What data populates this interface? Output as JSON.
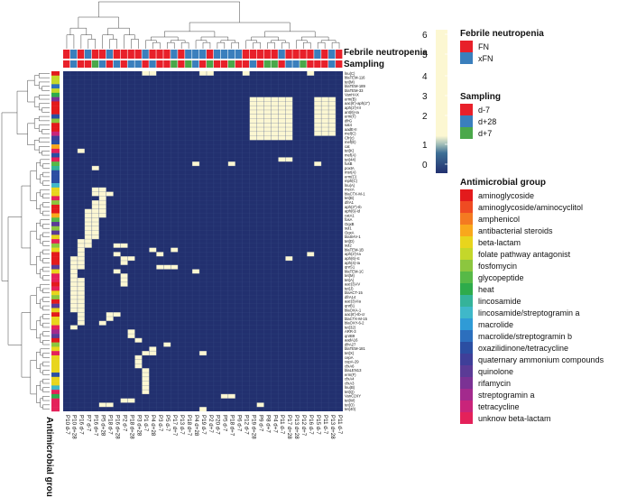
{
  "chart_data": {
    "type": "heatmap",
    "title": "",
    "xlabel": "",
    "ylabel": "Antimicrobial group",
    "value_range": [
      0,
      6
    ],
    "colorbar_ticks": [
      "6",
      "5",
      "4",
      "3",
      "2",
      "1",
      "0"
    ],
    "colorbar_ticks_numeric": [
      6,
      5,
      4,
      3,
      2,
      1,
      0
    ],
    "colorbar_colors": [
      "#fcf7d2",
      "#22306f"
    ],
    "column_labels": [
      "P10 d-7",
      "P10 d+28",
      "P16 d-7",
      "P7 d-7",
      "P16 d+7",
      "P5 d+28",
      "P18 d-7",
      "P16 d+28",
      "P2 d-7",
      "P18 d+28",
      "P3 d+28",
      "P1 d-7",
      "P4 d+28",
      "P3 d-7",
      "P5 d-7",
      "P17 d+7",
      "P13 d-7",
      "P18 d+7",
      "P4 d+28",
      "P19 d-7",
      "P2 d+7",
      "P20 d-7",
      "P5 d-7",
      "P18 d+7",
      "P6 d-7",
      "P12 d-7",
      "P19 d+28",
      "P9 d-7",
      "P8 d+7",
      "P4 d+7",
      "P11 d-7",
      "P17 d+28",
      "P13 d+28",
      "P12 d+7",
      "P16 d-7",
      "P15 d-7",
      "P11 d-7",
      "P13 d+28",
      "P11 d-7"
    ],
    "row_labels": [
      "lnu(C)",
      "blaTEM-116",
      "tet(M)",
      "blaTEM-189",
      "blaTEM-33",
      "VanHAX",
      "erm(B)",
      "aac(6')-aph(2'')",
      "aph(3')-III",
      "ant(6)-Ia",
      "erm(F)",
      "dfrG",
      "sat4",
      "aadE-II",
      "mel(C)",
      "Cfr(c)",
      "mef(E)",
      "cat",
      "tet(K)",
      "mef(A)",
      "tet(44)",
      "fusB",
      "poxtA",
      "msr(A)",
      "erm(C)",
      "mph(C)",
      "lnu(A)",
      "mecA",
      "blaCTX-M-1",
      "tet(B)",
      "dfrA1",
      "aph(3'')-Ib",
      "aph(6)-Id",
      "catA1",
      "fosA",
      "OqxB",
      "sul1",
      "OqxA",
      "blaSHV-1",
      "tet(D)",
      "sul2",
      "blaTEM-1B",
      "aph(3')-Ia",
      "aph(6)-Ic",
      "aph(4)-Ia",
      "qnrS1",
      "blaTEM-1C",
      "tet(M)",
      "tet(A)",
      "aac(3)-IV",
      "tet(J)",
      "blaACT-15",
      "dfrA14",
      "aac(3)-IIa",
      "qnrB1",
      "blaOXA-1",
      "aac(6')-Ib-cr",
      "blaCTX-M-15",
      "blaOXY-6-2",
      "tet(32)",
      "ARR-3",
      "qnrB9",
      "aadA16",
      "dfrA27",
      "blaTEM-181",
      "tet(X)",
      "cepA",
      "cepA-29",
      "cfxA6",
      "blaLEN13",
      "erm(F)",
      "cfxA4",
      "cfxA3",
      "lnu(B)",
      "tet(Q)",
      "VanC2XY",
      "tet(W)",
      "tet(O)",
      "tet(40)"
    ],
    "matrix_high_cells": [
      [
        0,
        11
      ],
      [
        0,
        12
      ],
      [
        0,
        19
      ],
      [
        0,
        20
      ],
      [
        0,
        25
      ],
      [
        0,
        34
      ],
      [
        6,
        26
      ],
      [
        6,
        27
      ],
      [
        6,
        28
      ],
      [
        6,
        29
      ],
      [
        6,
        30
      ],
      [
        6,
        31
      ],
      [
        6,
        35
      ],
      [
        6,
        36
      ],
      [
        6,
        37
      ],
      [
        7,
        26
      ],
      [
        7,
        27
      ],
      [
        7,
        28
      ],
      [
        7,
        29
      ],
      [
        7,
        30
      ],
      [
        7,
        31
      ],
      [
        7,
        35
      ],
      [
        7,
        36
      ],
      [
        7,
        37
      ],
      [
        8,
        26
      ],
      [
        8,
        27
      ],
      [
        8,
        28
      ],
      [
        8,
        29
      ],
      [
        8,
        30
      ],
      [
        8,
        31
      ],
      [
        8,
        35
      ],
      [
        8,
        36
      ],
      [
        8,
        37
      ],
      [
        9,
        26
      ],
      [
        9,
        27
      ],
      [
        9,
        28
      ],
      [
        9,
        29
      ],
      [
        9,
        30
      ],
      [
        9,
        31
      ],
      [
        9,
        35
      ],
      [
        9,
        36
      ],
      [
        9,
        37
      ],
      [
        10,
        26
      ],
      [
        10,
        27
      ],
      [
        10,
        28
      ],
      [
        10,
        29
      ],
      [
        10,
        30
      ],
      [
        10,
        31
      ],
      [
        10,
        35
      ],
      [
        10,
        36
      ],
      [
        10,
        37
      ],
      [
        11,
        26
      ],
      [
        11,
        27
      ],
      [
        11,
        28
      ],
      [
        11,
        29
      ],
      [
        11,
        30
      ],
      [
        11,
        31
      ],
      [
        11,
        35
      ],
      [
        11,
        36
      ],
      [
        11,
        37
      ],
      [
        12,
        26
      ],
      [
        12,
        27
      ],
      [
        12,
        28
      ],
      [
        12,
        29
      ],
      [
        12,
        30
      ],
      [
        12,
        31
      ],
      [
        12,
        35
      ],
      [
        12,
        36
      ],
      [
        12,
        37
      ],
      [
        13,
        26
      ],
      [
        13,
        27
      ],
      [
        13,
        28
      ],
      [
        13,
        29
      ],
      [
        13,
        30
      ],
      [
        13,
        31
      ],
      [
        13,
        35
      ],
      [
        13,
        36
      ],
      [
        13,
        37
      ],
      [
        14,
        26
      ],
      [
        14,
        27
      ],
      [
        14,
        28
      ],
      [
        14,
        29
      ],
      [
        14,
        30
      ],
      [
        14,
        31
      ],
      [
        14,
        35
      ],
      [
        14,
        36
      ],
      [
        14,
        37
      ],
      [
        15,
        26
      ],
      [
        15,
        27
      ],
      [
        15,
        28
      ],
      [
        15,
        29
      ],
      [
        15,
        30
      ],
      [
        15,
        31
      ],
      [
        18,
        2
      ],
      [
        20,
        30
      ],
      [
        20,
        31
      ],
      [
        21,
        18
      ],
      [
        21,
        23
      ],
      [
        21,
        35
      ],
      [
        22,
        4
      ],
      [
        27,
        4
      ],
      [
        27,
        5
      ],
      [
        28,
        4
      ],
      [
        28,
        5
      ],
      [
        28,
        6
      ],
      [
        29,
        5
      ],
      [
        30,
        4
      ],
      [
        30,
        5
      ],
      [
        31,
        4
      ],
      [
        31,
        5
      ],
      [
        32,
        3
      ],
      [
        32,
        4
      ],
      [
        32,
        5
      ],
      [
        33,
        3
      ],
      [
        33,
        4
      ],
      [
        33,
        5
      ],
      [
        34,
        3
      ],
      [
        34,
        4
      ],
      [
        35,
        3
      ],
      [
        35,
        4
      ],
      [
        36,
        3
      ],
      [
        36,
        4
      ],
      [
        37,
        3
      ],
      [
        37,
        4
      ],
      [
        38,
        3
      ],
      [
        38,
        4
      ],
      [
        39,
        2
      ],
      [
        39,
        3
      ],
      [
        40,
        2
      ],
      [
        40,
        3
      ],
      [
        40,
        7
      ],
      [
        40,
        8
      ],
      [
        41,
        2
      ],
      [
        41,
        12
      ],
      [
        41,
        15
      ],
      [
        42,
        2
      ],
      [
        42,
        7
      ],
      [
        42,
        13
      ],
      [
        42,
        34
      ],
      [
        43,
        1
      ],
      [
        43,
        2
      ],
      [
        43,
        8
      ],
      [
        43,
        9
      ],
      [
        43,
        31
      ],
      [
        44,
        1
      ],
      [
        44,
        2
      ],
      [
        44,
        8
      ],
      [
        45,
        1
      ],
      [
        45,
        2
      ],
      [
        45,
        13
      ],
      [
        45,
        14
      ],
      [
        45,
        15
      ],
      [
        46,
        1
      ],
      [
        46,
        7
      ],
      [
        46,
        18
      ],
      [
        47,
        1
      ],
      [
        47,
        8
      ],
      [
        48,
        1
      ],
      [
        48,
        2
      ],
      [
        48,
        8
      ],
      [
        49,
        1
      ],
      [
        49,
        2
      ],
      [
        49,
        8
      ],
      [
        50,
        1
      ],
      [
        50,
        2
      ],
      [
        51,
        1
      ],
      [
        51,
        2
      ],
      [
        52,
        1
      ],
      [
        52,
        2
      ],
      [
        53,
        1
      ],
      [
        53,
        2
      ],
      [
        54,
        1
      ],
      [
        54,
        2
      ],
      [
        55,
        1
      ],
      [
        55,
        2
      ],
      [
        56,
        2
      ],
      [
        56,
        6
      ],
      [
        56,
        7
      ],
      [
        57,
        2
      ],
      [
        57,
        6
      ],
      [
        58,
        2
      ],
      [
        58,
        5
      ],
      [
        59,
        1
      ],
      [
        60,
        9
      ],
      [
        61,
        9
      ],
      [
        62,
        10
      ],
      [
        63,
        14
      ],
      [
        64,
        12
      ],
      [
        65,
        11
      ],
      [
        65,
        12
      ],
      [
        65,
        19
      ],
      [
        66,
        10
      ],
      [
        67,
        10
      ],
      [
        68,
        10
      ],
      [
        69,
        11
      ],
      [
        70,
        11
      ],
      [
        71,
        11
      ],
      [
        72,
        11
      ],
      [
        73,
        11
      ],
      [
        74,
        11
      ],
      [
        75,
        22
      ],
      [
        75,
        23
      ],
      [
        76,
        8
      ],
      [
        76,
        9
      ],
      [
        77,
        5
      ],
      [
        77,
        6
      ],
      [
        77,
        27
      ],
      [
        78,
        19
      ]
    ],
    "column_annotations": {
      "febrile_neutropenia": [
        "FN",
        "xFN",
        "FN",
        "xFN",
        "FN",
        "FN",
        "xFN",
        "FN",
        "FN",
        "FN",
        "FN",
        "xFN",
        "FN",
        "FN",
        "FN",
        "xFN",
        "FN",
        "xFN",
        "xFN",
        "xFN",
        "FN",
        "xFN",
        "xFN",
        "xFN",
        "xFN",
        "FN",
        "FN",
        "FN",
        "FN",
        "FN",
        "xFN",
        "FN",
        "FN",
        "FN",
        "FN",
        "xFN",
        "FN",
        "xFN",
        "FN"
      ],
      "sampling": [
        "d-7",
        "d+28",
        "d-7",
        "d-7",
        "d+7",
        "d+28",
        "d-7",
        "d+28",
        "d-7",
        "d+28",
        "d+28",
        "d-7",
        "d+28",
        "d-7",
        "d-7",
        "d+7",
        "d-7",
        "d+7",
        "d+28",
        "d-7",
        "d+7",
        "d-7",
        "d-7",
        "d+7",
        "d-7",
        "d-7",
        "d+28",
        "d-7",
        "d+7",
        "d+7",
        "d-7",
        "d+28",
        "d+28",
        "d+7",
        "d-7",
        "d-7",
        "d-7",
        "d+28",
        "d-7"
      ]
    },
    "row_group_index": [
      0,
      5,
      5,
      12,
      5,
      8,
      16,
      0,
      0,
      0,
      13,
      6,
      0,
      0,
      18,
      14,
      13,
      3,
      19,
      13,
      19,
      7,
      9,
      13,
      13,
      13,
      10,
      4,
      4,
      19,
      6,
      0,
      0,
      3,
      7,
      15,
      6,
      15,
      4,
      19,
      6,
      4,
      0,
      0,
      0,
      15,
      4,
      19,
      19,
      0,
      19,
      4,
      6,
      0,
      15,
      4,
      0,
      4,
      4,
      19,
      17,
      15,
      0,
      6,
      4,
      19,
      4,
      4,
      4,
      4,
      13,
      4,
      4,
      10,
      19,
      8,
      19,
      19,
      19
    ]
  },
  "annotations": {
    "febrile_label": "Febrile neutropenia",
    "sampling_label": "Sampling",
    "row_axis_label": "Antimicrobial group"
  },
  "legend": {
    "febrile": {
      "title": "Febrile neutropenia",
      "items": [
        {
          "label": "FN",
          "color": "#e8202a"
        },
        {
          "label": "xFN",
          "color": "#3a7fbd"
        }
      ]
    },
    "sampling": {
      "title": "Sampling",
      "items": [
        {
          "label": "d-7",
          "color": "#e8202a"
        },
        {
          "label": "d+28",
          "color": "#3a7fbd"
        },
        {
          "label": "d+7",
          "color": "#4aa84a"
        }
      ]
    },
    "group": {
      "title": "Antimicrobial group",
      "items": [
        {
          "label": "aminoglycoside",
          "color": "#e31a1c"
        },
        {
          "label": "aminoglycoside/aminocyclitol",
          "color": "#ef4b22"
        },
        {
          "label": "amphenicol",
          "color": "#f47a21"
        },
        {
          "label": "antibacterial steroids",
          "color": "#f9a81c"
        },
        {
          "label": "beta-lactam",
          "color": "#e8d51d"
        },
        {
          "label": "folate pathway antagonist",
          "color": "#c4d72a"
        },
        {
          "label": "fosfomycin",
          "color": "#8cc63f"
        },
        {
          "label": "glycopeptide",
          "color": "#57b947"
        },
        {
          "label": "heat",
          "color": "#2eab4b"
        },
        {
          "label": "lincosamide",
          "color": "#35b39a"
        },
        {
          "label": "lincosamide/streptogramin a",
          "color": "#3fb8c9"
        },
        {
          "label": "macrolide",
          "color": "#2f9bd6"
        },
        {
          "label": "macrolide/streptogramin b",
          "color": "#2c6fbd"
        },
        {
          "label": "oxazilidinone/tetracycline",
          "color": "#2b4ea2"
        },
        {
          "label": "quaternary ammonium compounds",
          "color": "#3f3f99"
        },
        {
          "label": "quinolone",
          "color": "#5b3b96"
        },
        {
          "label": "rifamycin",
          "color": "#7b3294"
        },
        {
          "label": "streptogramin a",
          "color": "#a32a8d"
        },
        {
          "label": "tetracycline",
          "color": "#c9247a"
        },
        {
          "label": "unknow beta-lactam",
          "color": "#e4215a"
        }
      ]
    }
  }
}
